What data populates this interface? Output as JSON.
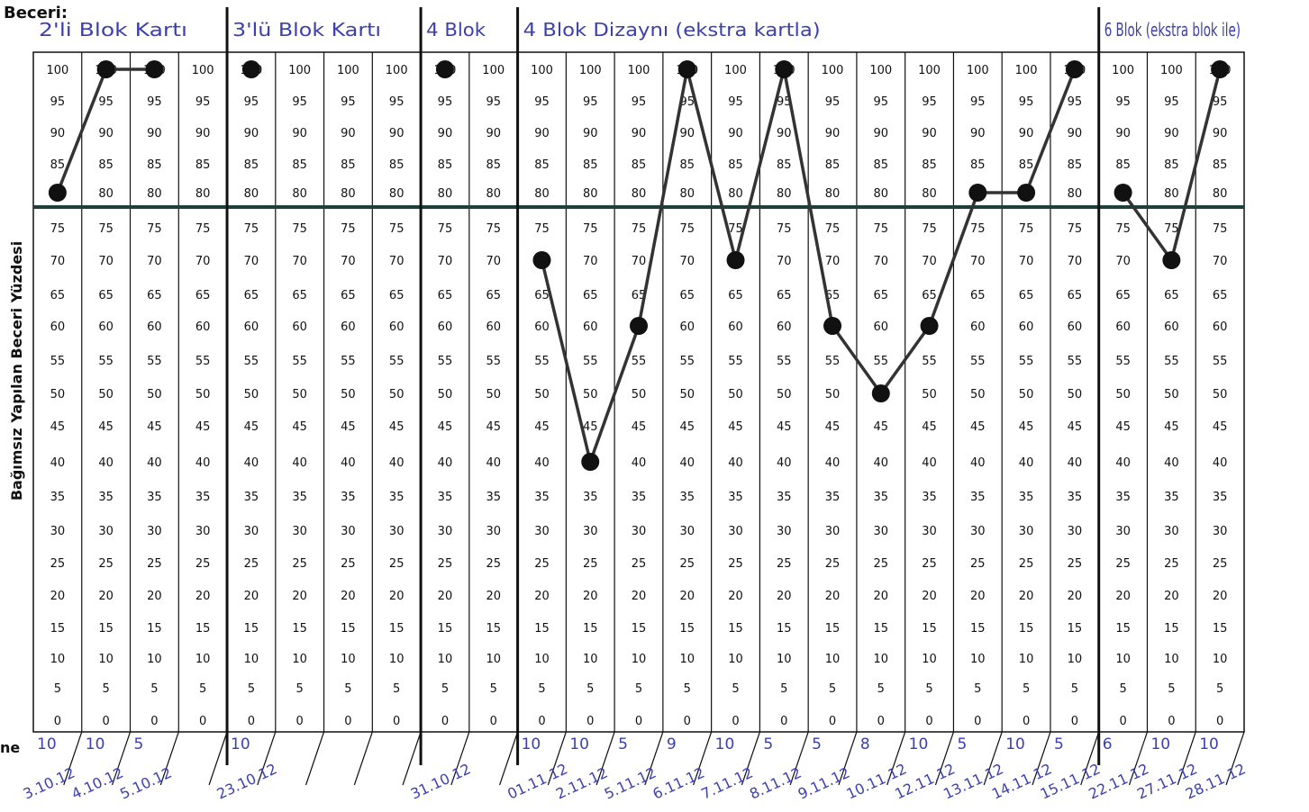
{
  "header": {
    "skill_label": "Beceri:",
    "row_label_fragment": "ne"
  },
  "chart_data": {
    "type": "line",
    "title": "",
    "ylabel": "Bağımsız Yapılan Beceri Yüzdesi",
    "xlabel": "",
    "ylim": [
      0,
      100
    ],
    "y_ticks": [
      0,
      5,
      10,
      15,
      20,
      25,
      30,
      35,
      40,
      45,
      50,
      55,
      60,
      65,
      70,
      75,
      80,
      85,
      90,
      95,
      100
    ],
    "phases": [
      {
        "label": "2'li Blok Kartı",
        "start": 0,
        "end": 3
      },
      {
        "label": "3'lü Blok Kartı",
        "start": 4,
        "end": 7
      },
      {
        "label": "4 Blok",
        "start": 8,
        "end": 9
      },
      {
        "label": "4 Blok Dizaynı (ekstra kartla)",
        "start": 10,
        "end": 21
      },
      {
        "label": "6 Blok (ekstra blok ile)",
        "start": 22,
        "end": 24
      }
    ],
    "sessions": [
      {
        "session": 1,
        "value": 80,
        "attempts": "10",
        "date": "3.10.12"
      },
      {
        "session": 2,
        "value": 100,
        "attempts": "10",
        "date": "4.10.12"
      },
      {
        "session": 3,
        "value": 100,
        "attempts": "5",
        "date": "5.10.12"
      },
      {
        "session": 4,
        "value": null,
        "attempts": "",
        "date": ""
      },
      {
        "session": 5,
        "value": 100,
        "attempts": "10",
        "date": "23.10.12"
      },
      {
        "session": 6,
        "value": null,
        "attempts": "",
        "date": ""
      },
      {
        "session": 7,
        "value": null,
        "attempts": "",
        "date": ""
      },
      {
        "session": 8,
        "value": null,
        "attempts": "",
        "date": ""
      },
      {
        "session": 9,
        "value": 100,
        "attempts": "",
        "date": "31.10.12"
      },
      {
        "session": 10,
        "value": null,
        "attempts": "",
        "date": ""
      },
      {
        "session": 11,
        "value": 70,
        "attempts": "10",
        "date": "01.11.12"
      },
      {
        "session": 12,
        "value": 40,
        "attempts": "10",
        "date": "2.11.12"
      },
      {
        "session": 13,
        "value": 60,
        "attempts": "5",
        "date": "5.11.12"
      },
      {
        "session": 14,
        "value": 100,
        "attempts": "9",
        "date": "6.11.12"
      },
      {
        "session": 15,
        "value": 70,
        "attempts": "10",
        "date": "7.11.12"
      },
      {
        "session": 16,
        "value": 100,
        "attempts": "5",
        "date": "8.11.12"
      },
      {
        "session": 17,
        "value": 60,
        "attempts": "5",
        "date": "9.11.12"
      },
      {
        "session": 18,
        "value": 50,
        "attempts": "8",
        "date": "10.11.12"
      },
      {
        "session": 19,
        "value": 60,
        "attempts": "10",
        "date": "12.11.12"
      },
      {
        "session": 20,
        "value": 80,
        "attempts": "5",
        "date": "13.11.12"
      },
      {
        "session": 21,
        "value": 80,
        "attempts": "10",
        "date": "14.11.12"
      },
      {
        "session": 22,
        "value": 100,
        "attempts": "5",
        "date": "15.11.12"
      },
      {
        "session": 23,
        "value": 80,
        "attempts": "6",
        "date": "22.11.12"
      },
      {
        "session": 24,
        "value": 70,
        "attempts": "10",
        "date": "27.11.12"
      },
      {
        "session": 25,
        "value": 100,
        "attempts": "10",
        "date": "28.11.12"
      }
    ],
    "grid": true,
    "criterion_line": 80,
    "colors": {
      "ink": "#3b3fb0",
      "line": "#333333",
      "grid": "#111111",
      "criterion": "#1f3f3a"
    }
  }
}
